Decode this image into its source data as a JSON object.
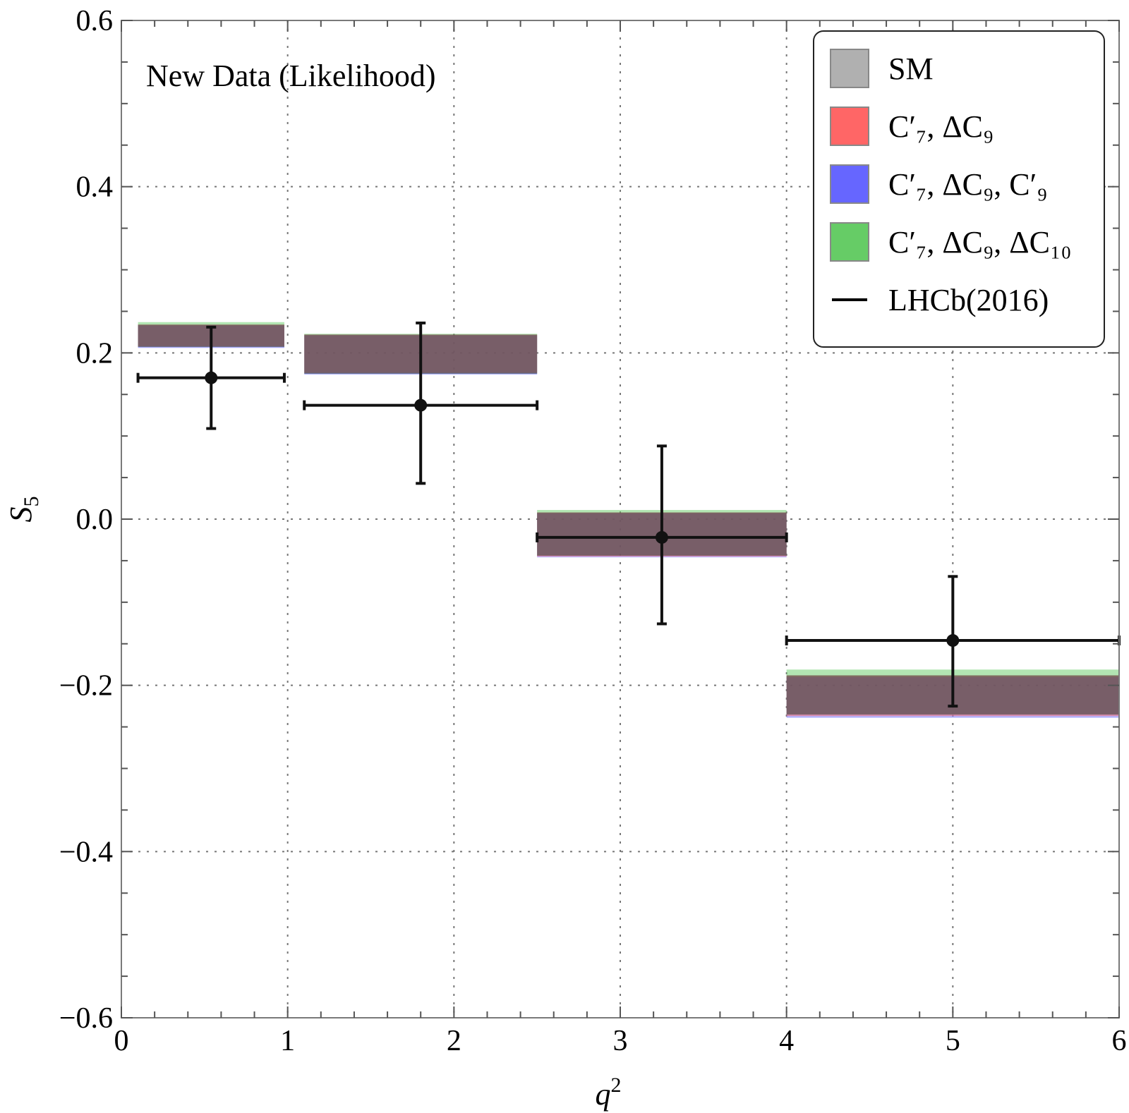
{
  "chart_data": {
    "type": "errorbar-bands",
    "xlabel": "q",
    "xlabel_superscript": "2",
    "ylabel": "S",
    "ylabel_subscript": "5",
    "xlim": [
      0,
      6
    ],
    "ylim": [
      -0.6,
      0.6
    ],
    "xticks": [
      0,
      1,
      2,
      3,
      4,
      5,
      6
    ],
    "yticks": [
      -0.6,
      -0.4,
      -0.2,
      0.0,
      0.2,
      0.4,
      0.6
    ],
    "ytick_labels": [
      "−0.6",
      "−0.4",
      "−0.2",
      "0.0",
      "0.2",
      "0.4",
      "0.6"
    ],
    "grid": true,
    "annotation": "New Data (Likelihood)",
    "legend_position": "top-right",
    "legend": [
      {
        "key": "sm",
        "label": "SM",
        "color": "#b0b0b0",
        "kind": "box"
      },
      {
        "key": "c7_c9",
        "label": "C′₇, ΔC₉",
        "color": "#ff6666",
        "kind": "box"
      },
      {
        "key": "c7_c9_c9p",
        "label": "C′₇, ΔC₉, C′₉",
        "color": "#6666ff",
        "kind": "box"
      },
      {
        "key": "c7_c9_c10",
        "label": "C′₇, ΔC₉, ΔC₁₀",
        "color": "#66cc66",
        "kind": "box"
      },
      {
        "key": "lhcb",
        "label": "LHCb(2016)",
        "color": "#000000",
        "kind": "line"
      }
    ],
    "bins": [
      {
        "x0": 0.1,
        "x1": 0.98,
        "sm": [
          0.207,
          0.234
        ],
        "c7_c9": [
          0.208,
          0.234
        ],
        "c7_c9_c9p": [
          0.206,
          0.233
        ],
        "c7_c9_c10": [
          0.208,
          0.237
        ]
      },
      {
        "x0": 1.1,
        "x1": 2.5,
        "sm": [
          0.175,
          0.222
        ],
        "c7_c9": [
          0.176,
          0.222
        ],
        "c7_c9_c9p": [
          0.174,
          0.221
        ],
        "c7_c9_c10": [
          0.175,
          0.223
        ]
      },
      {
        "x0": 2.5,
        "x1": 4.0,
        "sm": [
          -0.044,
          0.008
        ],
        "c7_c9": [
          -0.045,
          0.008
        ],
        "c7_c9_c9p": [
          -0.046,
          0.007
        ],
        "c7_c9_c10": [
          -0.044,
          0.011
        ]
      },
      {
        "x0": 4.0,
        "x1": 6.0,
        "sm": [
          -0.235,
          -0.188
        ],
        "c7_c9": [
          -0.237,
          -0.188
        ],
        "c7_c9_c9p": [
          -0.239,
          -0.19
        ],
        "c7_c9_c10": [
          -0.236,
          -0.181
        ]
      }
    ],
    "series": [
      {
        "name": "LHCb(2016)",
        "points": [
          {
            "x": 0.54,
            "xlo": 0.1,
            "xhi": 0.98,
            "y": 0.17,
            "ylo": 0.109,
            "yhi": 0.231
          },
          {
            "x": 1.8,
            "xlo": 1.1,
            "xhi": 2.5,
            "y": 0.137,
            "ylo": 0.043,
            "yhi": 0.236
          },
          {
            "x": 3.25,
            "xlo": 2.5,
            "xhi": 4.0,
            "y": -0.022,
            "ylo": -0.126,
            "yhi": 0.088
          },
          {
            "x": 5.0,
            "xlo": 4.0,
            "xhi": 6.0,
            "y": -0.146,
            "ylo": -0.225,
            "yhi": -0.069
          }
        ]
      }
    ]
  }
}
